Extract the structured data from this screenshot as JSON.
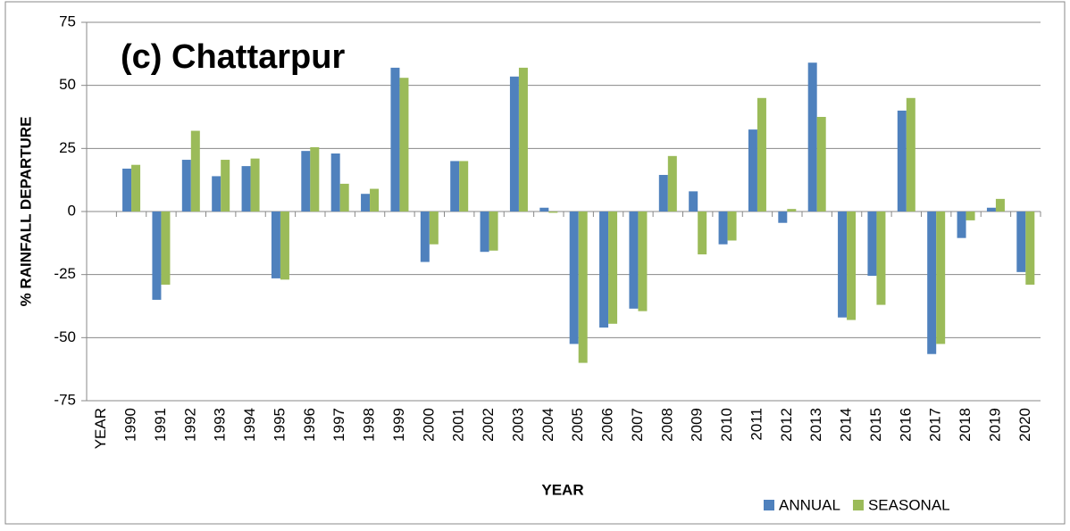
{
  "chart_data": {
    "type": "bar",
    "title": "(c) Chattarpur",
    "x_label": "YEAR",
    "y_label": "% RAINFALL DEPARTURE",
    "categories": [
      "YEAR",
      "1990",
      "1991",
      "1992",
      "1993",
      "1994",
      "1995",
      "1996",
      "1997",
      "1998",
      "1999",
      "2000",
      "2001",
      "2002",
      "2003",
      "2004",
      "2005",
      "2006",
      "2007",
      "2008",
      "2009",
      "2010",
      "2011",
      "2012",
      "2013",
      "2014",
      "2015",
      "2016",
      "2017",
      "2018",
      "2019",
      "2020"
    ],
    "series": [
      {
        "name": "ANNUAL",
        "color": "#4f81bd",
        "values": [
          null,
          17,
          -35,
          20.5,
          14,
          18,
          -26.5,
          24,
          23,
          7,
          57,
          -20,
          20,
          -16,
          53.5,
          1.5,
          -52.5,
          -46,
          -38.5,
          14.5,
          8,
          -13,
          32.5,
          -4.5,
          59,
          -42,
          -25.5,
          40,
          -56.5,
          -10.5,
          1.5,
          -24
        ]
      },
      {
        "name": "SEASONAL",
        "color": "#9bbb59",
        "values": [
          null,
          18.5,
          -29,
          32,
          20.5,
          21,
          -27,
          25.5,
          11,
          9,
          53,
          -13,
          20,
          -15.5,
          57,
          -0.5,
          -60,
          -44.5,
          -39.5,
          22,
          -17,
          -11.5,
          45,
          1,
          37.5,
          -43,
          -37,
          45,
          -52.5,
          -3.5,
          5,
          -29
        ]
      }
    ],
    "ylim": [
      -75,
      75
    ],
    "yticks": [
      -75,
      -50,
      -25,
      0,
      25,
      50,
      75
    ],
    "grid": true,
    "legend": "bottom-right"
  }
}
